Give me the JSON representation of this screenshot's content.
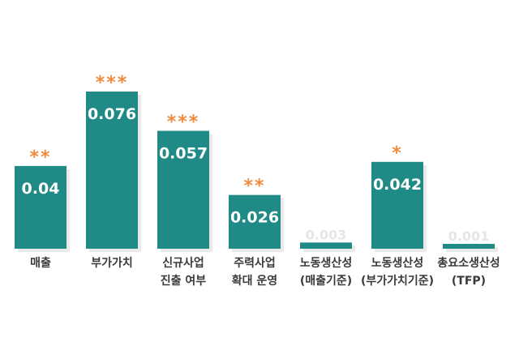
{
  "chart_data": {
    "type": "bar",
    "categories": [
      [
        "매출"
      ],
      [
        "부가가치"
      ],
      [
        "신규사업",
        "진출 여부"
      ],
      [
        "주력사업",
        "확대 운영"
      ],
      [
        "노동생산성",
        "(매출기준)"
      ],
      [
        "노동생산성",
        "(부가가치기준)"
      ],
      [
        "총요소생산성",
        "(TFP)"
      ]
    ],
    "values": [
      0.04,
      0.076,
      0.057,
      0.026,
      0.003,
      0.042,
      0.001
    ],
    "value_labels": [
      "0.04",
      "0.076",
      "0.057",
      "0.026",
      "0.003",
      "0.042",
      "0.001"
    ],
    "significance": [
      "**",
      "***",
      "***",
      "**",
      "",
      "*",
      ""
    ],
    "ylim": [
      0,
      0.08
    ],
    "grid": false,
    "colors": {
      "bar": "#1f8a86",
      "significance": "#f08a3c",
      "value_text": "#ffffff",
      "category_text": "#3a3a3a"
    }
  }
}
